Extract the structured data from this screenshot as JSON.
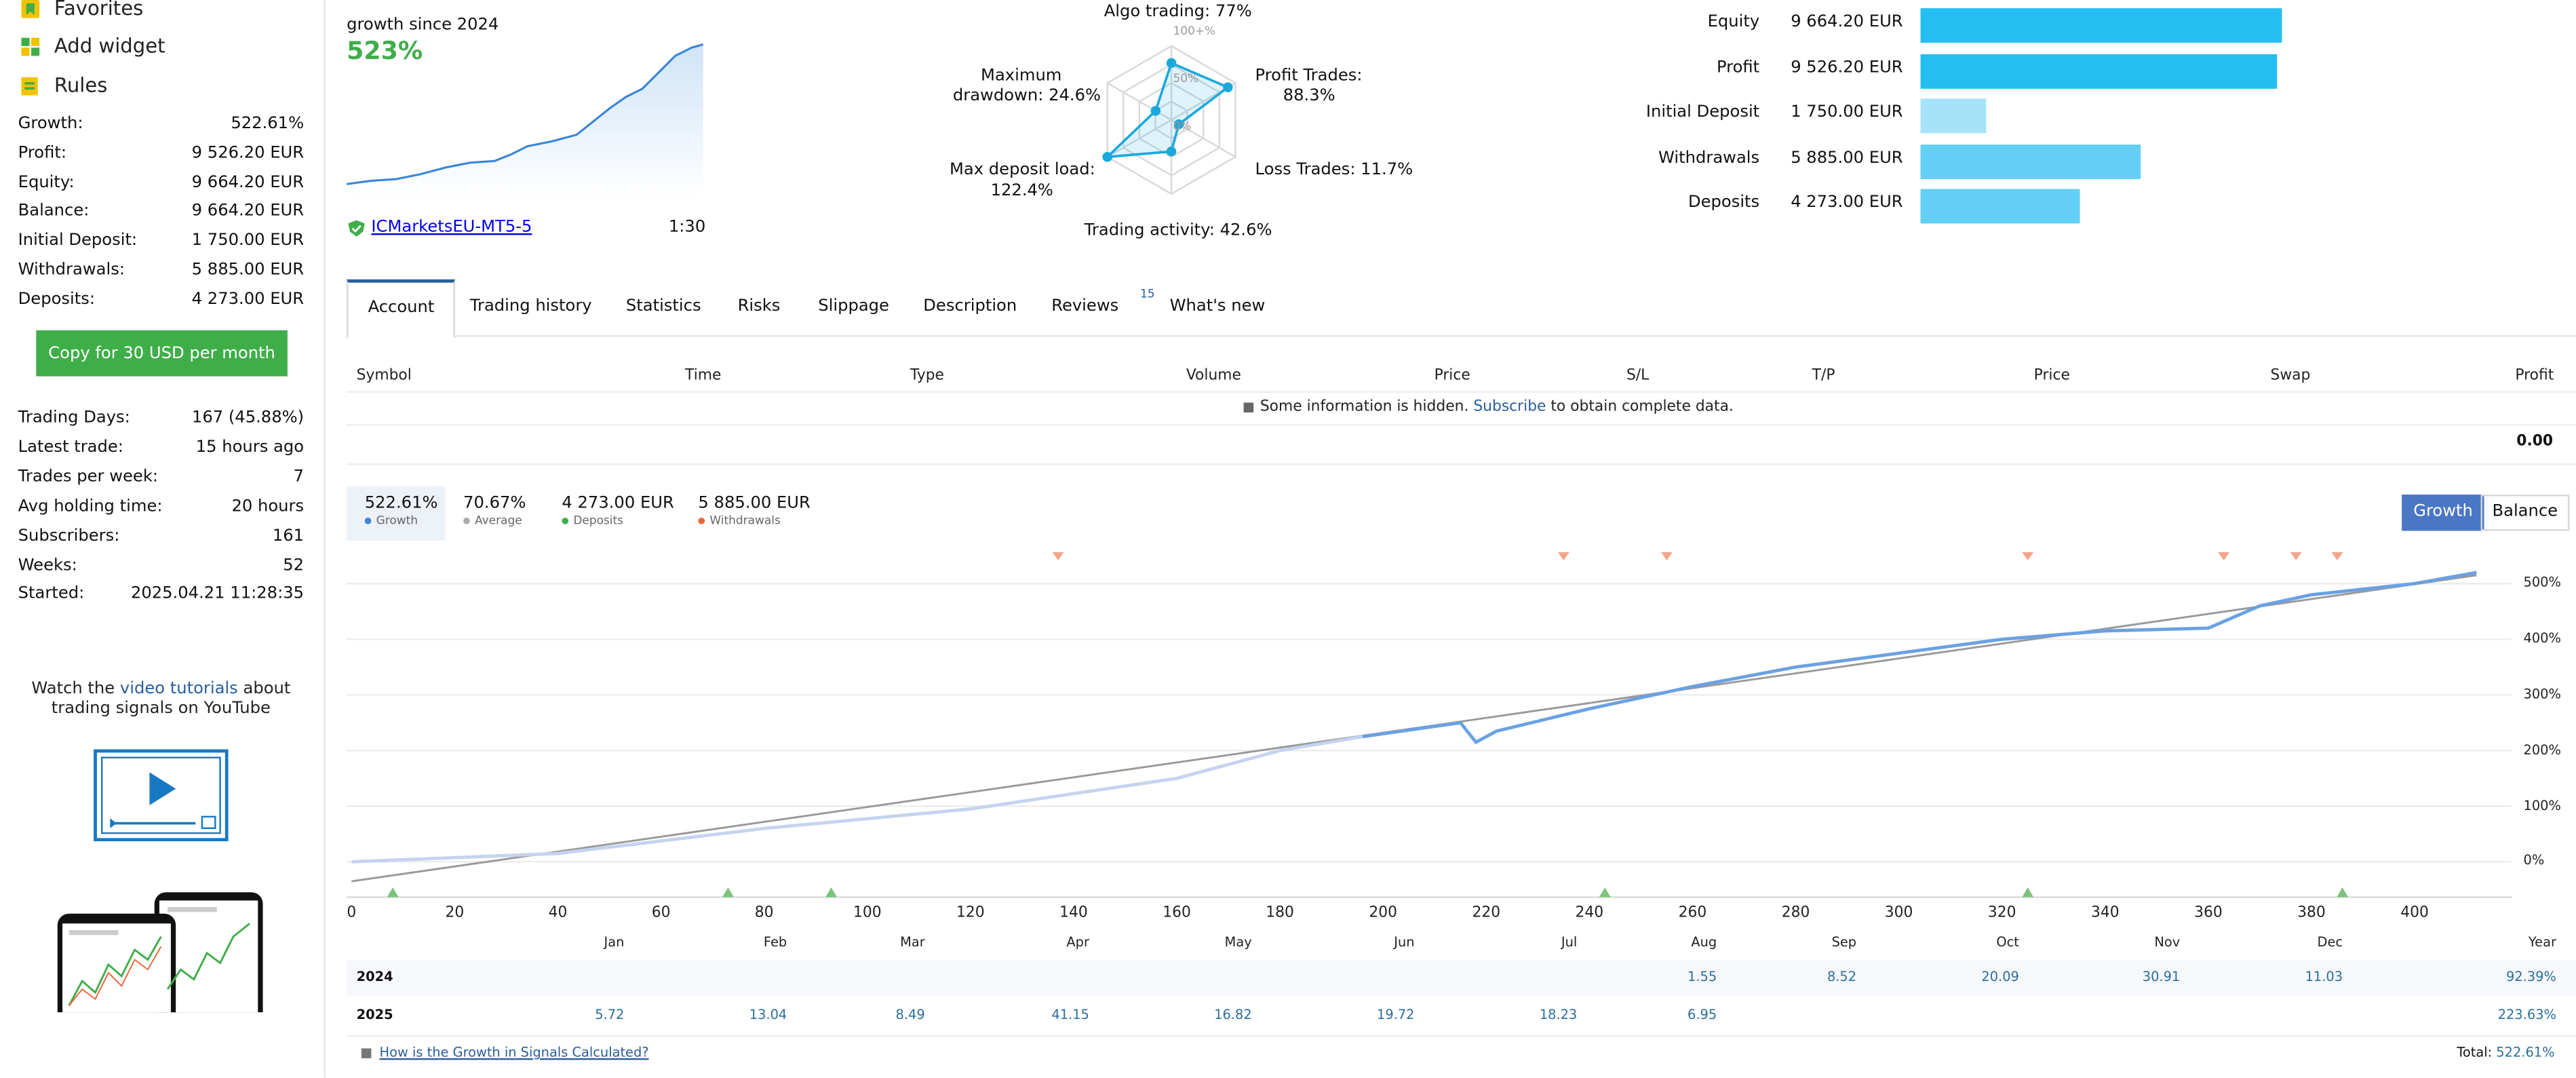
{
  "sidebar": {
    "menu": [
      {
        "label": "Favorites",
        "icon": "bookmark-icon"
      },
      {
        "label": "Add widget",
        "icon": "widget-icon"
      },
      {
        "label": "Rules",
        "icon": "rules-icon"
      }
    ],
    "stats": [
      {
        "label": "Growth:",
        "value": "522.61%"
      },
      {
        "label": "Profit:",
        "value": "9 526.20 EUR"
      },
      {
        "label": "Equity:",
        "value": "9 664.20 EUR"
      },
      {
        "label": "Balance:",
        "value": "9 664.20 EUR"
      },
      {
        "label": "Initial Deposit:",
        "value": "1 750.00 EUR"
      },
      {
        "label": "Withdrawals:",
        "value": "5 885.00 EUR"
      },
      {
        "label": "Deposits:",
        "value": "4 273.00 EUR"
      }
    ],
    "copy_button": "Copy for 30 USD per month",
    "stats2": [
      {
        "label": "Trading Days:",
        "value": "167 (45.88%)"
      },
      {
        "label": "Latest trade:",
        "value": "15 hours ago"
      },
      {
        "label": "Trades per week:",
        "value": "7"
      },
      {
        "label": "Avg holding time:",
        "value": "20 hours"
      },
      {
        "label": "Subscribers:",
        "value": "161"
      },
      {
        "label": "Weeks:",
        "value": "52"
      },
      {
        "label": "Started:",
        "value": "2025.04.21 11:28:35"
      }
    ],
    "promo": {
      "before": "Watch the ",
      "link": "video tutorials",
      "after": " about trading signals on YouTube"
    }
  },
  "summary": {
    "growth_label": "growth since 2024",
    "growth_value": "523%",
    "broker": "ICMarketsEU-MT5-5",
    "leverage": "1:30"
  },
  "radar": {
    "labels": {
      "algo": "Algo trading: 77%",
      "profit": "Profit Trades:",
      "profit_val": "88.3%",
      "loss": "Loss Trades: 11.7%",
      "activity": "Trading activity: 42.6%",
      "load": "Max deposit load:",
      "load_val": "122.4%",
      "drawdown": "Maximum",
      "drawdown_val": "drawdown: 24.6%"
    },
    "scale": {
      "r100": "100+%",
      "r50": "50%",
      "r0": "0%"
    },
    "values": [
      77,
      88.3,
      11.7,
      42.6,
      122.4,
      24.6
    ]
  },
  "bars": [
    {
      "label": "Equity",
      "value": "9 664.20 EUR",
      "amount": 9664.2,
      "color": "#24bef0"
    },
    {
      "label": "Profit",
      "value": "9 526.20 EUR",
      "amount": 9526.2,
      "color": "#24bef0"
    },
    {
      "label": "Initial Deposit",
      "value": "1 750.00 EUR",
      "amount": 1750,
      "color": "#a6e3f9"
    },
    {
      "label": "Withdrawals",
      "value": "5 885.00 EUR",
      "amount": 5885,
      "color": "#63cff5"
    },
    {
      "label": "Deposits",
      "value": "4 273.00 EUR",
      "amount": 4273,
      "color": "#63cff5"
    }
  ],
  "tabs": [
    {
      "label": "Account",
      "active": true
    },
    {
      "label": "Trading history"
    },
    {
      "label": "Statistics"
    },
    {
      "label": "Risks"
    },
    {
      "label": "Slippage"
    },
    {
      "label": "Description"
    },
    {
      "label": "Reviews",
      "badge": "15"
    },
    {
      "label": "What's new"
    }
  ],
  "table": {
    "headers": [
      "Symbol",
      "Time",
      "Type",
      "Volume",
      "Price",
      "S/L",
      "T/P",
      "Price",
      "Swap",
      "Profit"
    ],
    "hidden_before": "Some information is hidden. ",
    "hidden_link": "Subscribe",
    "hidden_after": " to obtain complete data.",
    "profit_total": "0.00"
  },
  "legend": [
    {
      "value": "522.61%",
      "label": "Growth",
      "color": "#3b86d8"
    },
    {
      "value": "70.67%",
      "label": "Average",
      "color": "#aaaaaa"
    },
    {
      "value": "4 273.00 EUR",
      "label": "Deposits",
      "color": "#3fae49"
    },
    {
      "value": "5 885.00 EUR",
      "label": "Withdrawals",
      "color": "#e8663c"
    }
  ],
  "toggle": {
    "growth": "Growth",
    "balance": "Balance"
  },
  "chart_data": {
    "type": "line",
    "x_ticks": [
      0,
      20,
      40,
      60,
      80,
      100,
      120,
      140,
      160,
      180,
      200,
      220,
      240,
      260,
      280,
      300,
      320,
      340,
      360,
      380,
      400
    ],
    "y_ticks": [
      "500%",
      "400%",
      "300%",
      "200%",
      "100%",
      "0%"
    ],
    "ylim": [
      -40,
      530
    ],
    "xlim": [
      0,
      416
    ],
    "series": [
      {
        "name": "Growth",
        "color": "#6aa1e3",
        "x": [
          0,
          40,
          80,
          120,
          160,
          180,
          196,
          215,
          218,
          222,
          240,
          260,
          280,
          300,
          320,
          340,
          360,
          370,
          380,
          400,
          412
        ],
        "y": [
          0,
          15,
          60,
          95,
          150,
          200,
          225,
          250,
          215,
          235,
          275,
          315,
          350,
          375,
          400,
          415,
          420,
          460,
          480,
          500,
          520
        ]
      },
      {
        "name": "Average",
        "color": "#999999",
        "x": [
          0,
          412
        ],
        "y": [
          -35,
          515
        ]
      }
    ],
    "withdrawal_markers": [
      137,
      235,
      255,
      325,
      363,
      377,
      385
    ],
    "deposit_markers": [
      8,
      73,
      93,
      243,
      325,
      386
    ]
  },
  "monthly": {
    "headers": [
      "Jan",
      "Feb",
      "Mar",
      "Apr",
      "May",
      "Jun",
      "Jul",
      "Aug",
      "Sep",
      "Oct",
      "Nov",
      "Dec",
      "Year"
    ],
    "rows": [
      {
        "year": "2024",
        "values": [
          "",
          "",
          "",
          "",
          "",
          "",
          "",
          "1.55",
          "8.52",
          "20.09",
          "30.91",
          "11.03",
          "92.39%"
        ]
      },
      {
        "year": "2025",
        "values": [
          "5.72",
          "13.04",
          "8.49",
          "41.15",
          "16.82",
          "19.72",
          "18.23",
          "6.95",
          "",
          "",
          "",
          "",
          "223.63%"
        ]
      }
    ],
    "footer_link": "How is the Growth in Signals Calculated?",
    "total_label": "Total:",
    "total_value": "522.61%"
  }
}
